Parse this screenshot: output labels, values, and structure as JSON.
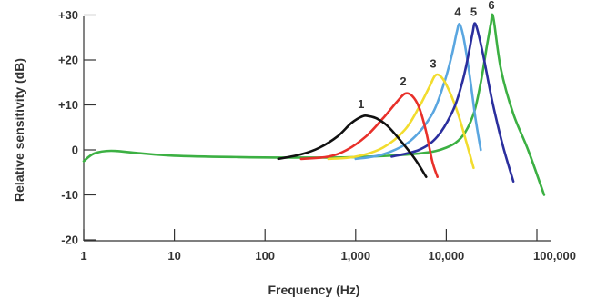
{
  "chart_data": {
    "type": "line",
    "title": "",
    "xlabel": "Frequency (Hz)",
    "ylabel": "Relative sensitivity (dB)",
    "xscale": "log",
    "xlim": [
      1,
      130000
    ],
    "ylim": [
      -22,
      33
    ],
    "grid": false,
    "x_ticks": [
      1,
      10,
      100,
      1000,
      10000,
      100000
    ],
    "x_tick_labels": [
      "1",
      "10",
      "100",
      "1,000",
      "10,000",
      "100,000"
    ],
    "y_ticks": [
      30,
      20,
      10,
      0,
      -10,
      -20
    ],
    "y_tick_labels": [
      "+30",
      "+20",
      "+10",
      "0",
      "-10",
      "-20"
    ],
    "series": [
      {
        "name": "1",
        "color": "#111111",
        "x": [
          140,
          250,
          400,
          630,
          900,
          1200,
          1400,
          1700,
          2200,
          3000,
          4500,
          6000
        ],
        "y": [
          -2,
          -1,
          0.5,
          3,
          6,
          7.5,
          7.5,
          7,
          5.5,
          2.5,
          -2,
          -6
        ]
      },
      {
        "name": "2",
        "color": "#e8302a",
        "x": [
          250,
          500,
          800,
          1300,
          2000,
          2800,
          3500,
          4200,
          5000,
          6000,
          7000,
          8000
        ],
        "y": [
          -2,
          -1.5,
          0,
          3,
          7,
          10.5,
          12.5,
          12,
          9.5,
          4,
          -2.5,
          -6
        ]
      },
      {
        "name": "3",
        "color": "#f2dc2e",
        "x": [
          500,
          1000,
          2000,
          3500,
          5000,
          6500,
          7500,
          8500,
          10000,
          13000,
          16000,
          20000
        ],
        "y": [
          -2,
          -1.5,
          0.5,
          4.5,
          9.5,
          14,
          16.5,
          16.5,
          14.5,
          9,
          3,
          -4
        ]
      },
      {
        "name": "4",
        "color": "#5aa6e0",
        "x": [
          1000,
          2000,
          4000,
          7000,
          9500,
          11500,
          13000,
          14000,
          15500,
          18000,
          21000,
          24000
        ],
        "y": [
          -2,
          -1,
          2,
          8,
          15,
          21,
          26,
          28,
          25,
          17,
          7,
          0
        ]
      },
      {
        "name": "5",
        "color": "#2b2f9e",
        "x": [
          2500,
          5000,
          8000,
          12000,
          15000,
          17500,
          19500,
          21000,
          25000,
          32000,
          42000,
          55000
        ],
        "y": [
          -1.5,
          0,
          3,
          9,
          15,
          21,
          26,
          28,
          22,
          11,
          1,
          -7
        ]
      },
      {
        "name": "6",
        "color": "#3cb043",
        "x": [
          1,
          1.3,
          2,
          4,
          10,
          50,
          200,
          1000,
          5000,
          10000,
          15000,
          20000,
          24000,
          28000,
          31000,
          33000,
          40000,
          55000,
          80000,
          120000
        ],
        "y": [
          -2.5,
          -0.8,
          -0.2,
          -0.7,
          -1.3,
          -1.6,
          -1.7,
          -1.6,
          -0.8,
          0.5,
          3,
          8,
          15,
          23,
          28,
          29.5,
          18,
          8,
          0,
          -10
        ]
      }
    ]
  }
}
